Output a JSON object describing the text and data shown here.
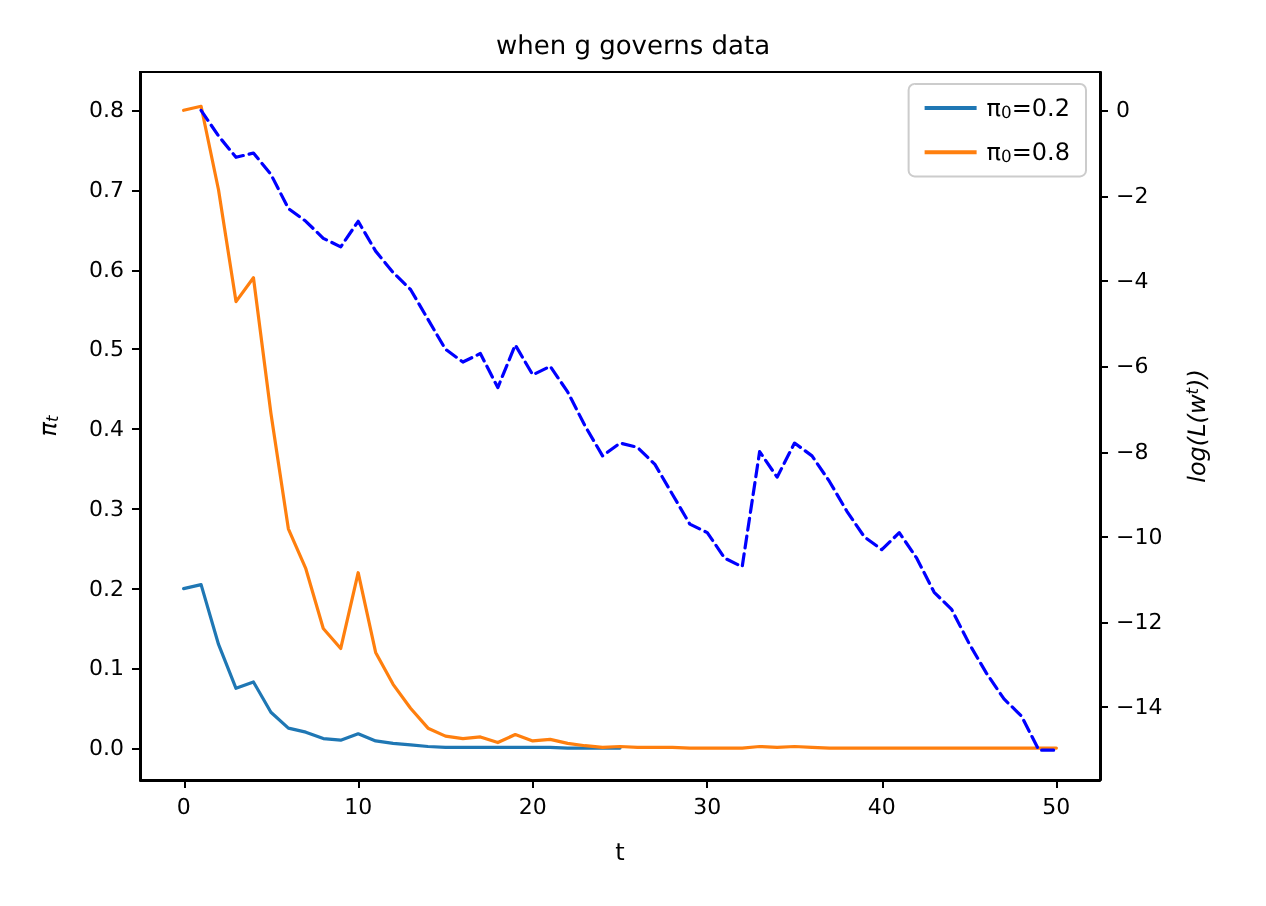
{
  "chart_data": {
    "type": "line",
    "title": "when g governs data",
    "xlabel": "t",
    "ylabel": "π$_{t}$",
    "y2label": "log(L(w$^{t}$))",
    "x": [
      0,
      1,
      2,
      3,
      4,
      5,
      6,
      7,
      8,
      9,
      10,
      11,
      12,
      13,
      14,
      15,
      16,
      17,
      18,
      19,
      20,
      21,
      22,
      23,
      24,
      25,
      26,
      27,
      28,
      29,
      30,
      31,
      32,
      33,
      34,
      35,
      36,
      37,
      38,
      39,
      40,
      41,
      42,
      43,
      44,
      45,
      46,
      47,
      48,
      49,
      50
    ],
    "series": [
      {
        "name": "π$_{0}$=0.2",
        "color": "#1f77b4",
        "values": [
          0.2,
          0.205,
          0.13,
          0.075,
          0.083,
          0.045,
          0.025,
          0.02,
          0.012,
          0.01,
          0.018,
          0.009,
          0.006,
          0.004,
          0.002,
          0.001,
          0.001,
          0.001,
          0.001,
          0.001,
          0.001,
          0.001,
          0,
          0,
          0,
          0,
          null,
          null,
          null,
          null,
          null,
          null,
          null,
          null,
          null,
          null,
          null,
          null,
          null,
          null,
          null,
          null,
          null,
          null,
          null,
          null,
          null,
          null,
          null,
          null,
          null
        ]
      },
      {
        "name": "π$_{0}$=0.8",
        "color": "#ff7f0e",
        "values": [
          0.8,
          0.805,
          0.7,
          0.56,
          0.59,
          0.42,
          0.275,
          0.225,
          0.15,
          0.125,
          0.22,
          0.12,
          0.08,
          0.05,
          0.025,
          0.015,
          0.012,
          0.014,
          0.007,
          0.017,
          0.009,
          0.011,
          0.006,
          0.003,
          0.001,
          0.002,
          0.001,
          0.001,
          0.001,
          0,
          0,
          0,
          0,
          0.002,
          0.001,
          0.002,
          0.001,
          0,
          0,
          0,
          0,
          0,
          0,
          0,
          0,
          0,
          0,
          0,
          0,
          0,
          0
        ]
      },
      {
        "color": "#0000ff",
        "axis": "y2",
        "line_style": "dashed",
        "x": [
          1,
          2,
          3,
          4,
          5,
          6,
          7,
          8,
          9,
          10,
          11,
          12,
          13,
          14,
          15,
          16,
          17,
          18,
          19,
          20,
          21,
          22,
          23,
          24,
          25,
          26,
          27,
          28,
          29,
          30,
          31,
          32,
          33,
          34,
          35,
          36,
          37,
          38,
          39,
          40,
          41,
          42,
          43,
          44,
          45,
          46,
          47,
          48,
          49,
          50
        ],
        "values": [
          0,
          -0.6,
          -1.1,
          -1.0,
          -1.5,
          -2.3,
          -2.6,
          -3.0,
          -3.2,
          -2.6,
          -3.3,
          -3.8,
          -4.2,
          -4.9,
          -5.6,
          -5.9,
          -5.7,
          -6.5,
          -5.5,
          -6.2,
          -6.0,
          -6.6,
          -7.4,
          -8.1,
          -7.8,
          -7.9,
          -8.3,
          -9.0,
          -9.7,
          -9.9,
          -10.5,
          -10.7,
          -8.0,
          -8.6,
          -7.8,
          -8.1,
          -8.7,
          -9.4,
          -10.0,
          -10.3,
          -9.9,
          -10.5,
          -11.3,
          -11.7,
          -12.5,
          -13.2,
          -13.8,
          -14.2,
          -15.0,
          -15.0
        ]
      }
    ],
    "xlim": [
      -2.5,
      52.5
    ],
    "xticks": [
      0,
      10,
      20,
      30,
      40,
      50
    ],
    "ylim": [
      -0.04,
      0.848
    ],
    "yticks": [
      {
        "value": 0,
        "label": "0.0"
      },
      {
        "value": 0.1,
        "label": "0.1"
      },
      {
        "value": 0.2,
        "label": "0.2"
      },
      {
        "value": 0.3,
        "label": "0.3"
      },
      {
        "value": 0.4,
        "label": "0.4"
      },
      {
        "value": 0.5,
        "label": "0.5"
      },
      {
        "value": 0.6,
        "label": "0.6"
      },
      {
        "value": 0.7,
        "label": "0.7"
      },
      {
        "value": 0.8,
        "label": "0.8"
      }
    ],
    "y2lim": [
      -15.7,
      0.9
    ],
    "y2ticks": [
      0,
      {
        "value": -2,
        "label": "−2"
      },
      {
        "value": -4,
        "label": "−4"
      },
      {
        "value": -6,
        "label": "−6"
      },
      {
        "value": -8,
        "label": "−8"
      },
      {
        "value": -10,
        "label": "−10"
      },
      {
        "value": -12,
        "label": "−12"
      },
      {
        "value": -14,
        "label": "−14"
      }
    ],
    "legend": "top right",
    "grid": false,
    "marker": "none",
    "line_style": "solid"
  }
}
